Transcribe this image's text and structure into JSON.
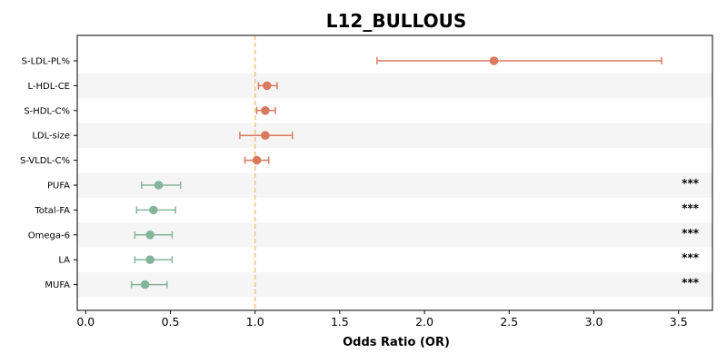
{
  "chart_data": {
    "type": "scatter",
    "subtype": "forest-plot",
    "title": "L12_BULLOUS",
    "xlabel": "Odds Ratio (OR)",
    "ylabel": "",
    "xlim": [
      -0.05,
      3.7
    ],
    "xticks": [
      0.0,
      0.5,
      1.0,
      1.5,
      2.0,
      2.5,
      3.0,
      3.5
    ],
    "xtick_labels": [
      "0.0",
      "0.5",
      "1.0",
      "1.5",
      "2.0",
      "2.5",
      "3.0",
      "3.5"
    ],
    "reference_line": 1.0,
    "reference_color": "#f5c77e",
    "colors": {
      "increase": "#d97a5e",
      "decrease": "#84b59b",
      "band": "#f5f5f5"
    },
    "grid": false,
    "rows": [
      {
        "label": "S-LDL-PL%",
        "or": 2.41,
        "lo": 1.72,
        "hi": 3.4,
        "sig": ""
      },
      {
        "label": "L-HDL-CE",
        "or": 1.07,
        "lo": 1.02,
        "hi": 1.13,
        "sig": ""
      },
      {
        "label": "S-HDL-C%",
        "or": 1.06,
        "lo": 1.01,
        "hi": 1.12,
        "sig": ""
      },
      {
        "label": "LDL-size",
        "or": 1.06,
        "lo": 0.91,
        "hi": 1.22,
        "sig": ""
      },
      {
        "label": "S-VLDL-C%",
        "or": 1.01,
        "lo": 0.94,
        "hi": 1.08,
        "sig": ""
      },
      {
        "label": "PUFA",
        "or": 0.43,
        "lo": 0.33,
        "hi": 0.56,
        "sig": "***"
      },
      {
        "label": "Total-FA",
        "or": 0.4,
        "lo": 0.3,
        "hi": 0.53,
        "sig": "***"
      },
      {
        "label": "Omega-6",
        "or": 0.38,
        "lo": 0.29,
        "hi": 0.51,
        "sig": "***"
      },
      {
        "label": "LA",
        "or": 0.38,
        "lo": 0.29,
        "hi": 0.51,
        "sig": "***"
      },
      {
        "label": "MUFA",
        "or": 0.35,
        "lo": 0.27,
        "hi": 0.48,
        "sig": "***"
      }
    ]
  }
}
